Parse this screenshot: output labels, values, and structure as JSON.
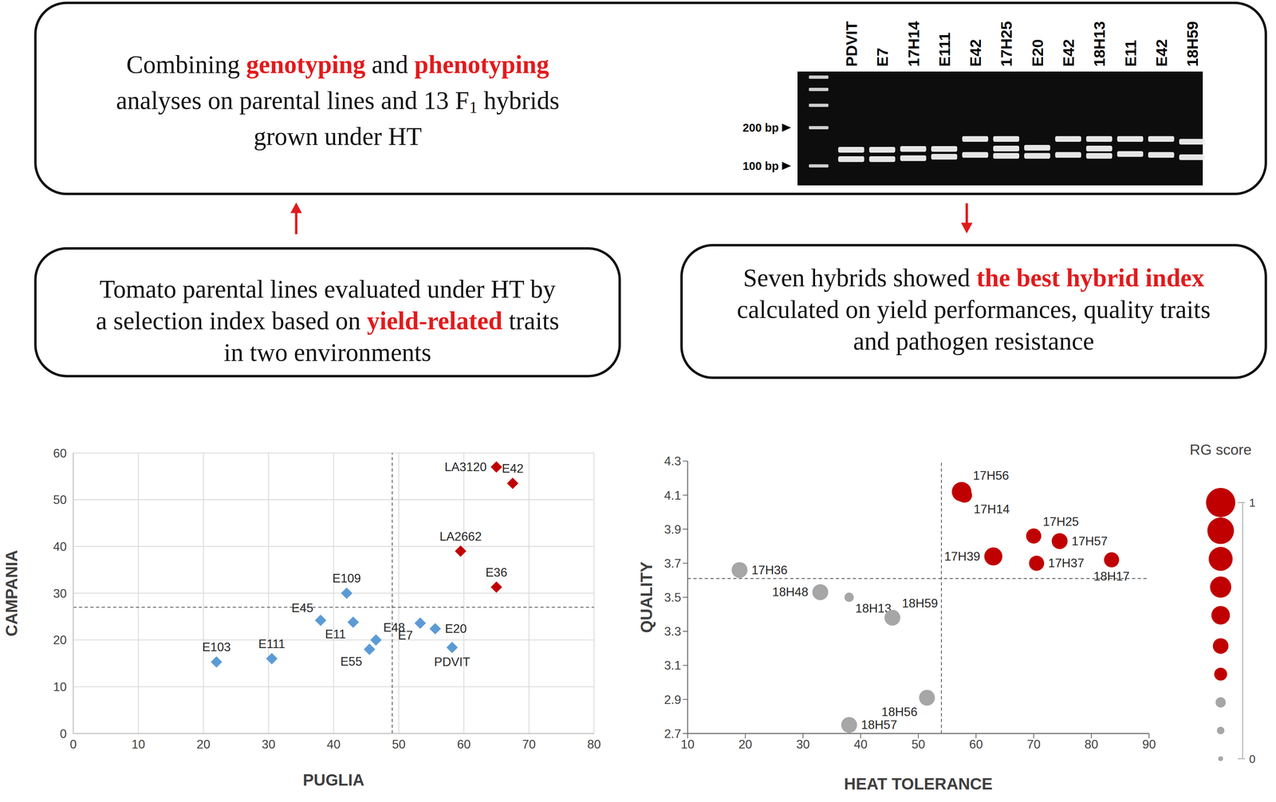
{
  "emphasis_color": "#e31a1c",
  "boxes": {
    "top": {
      "lines": [
        [
          {
            "text": "Combining "
          },
          {
            "text": "genotyping",
            "emphasis": true
          },
          {
            "text": " and "
          },
          {
            "text": "phenotyping",
            "emphasis": true
          }
        ],
        [
          {
            "text": "analyses on parental lines and 13 F"
          },
          {
            "text": "1",
            "sub": true
          },
          {
            "text": " hybrids"
          }
        ],
        [
          {
            "text": "grown under HT"
          }
        ]
      ]
    },
    "left": {
      "lines": [
        [
          {
            "text": "Tomato parental lines evaluated under HT by"
          }
        ],
        [
          {
            "text": "a selection index based on "
          },
          {
            "text": "yield-related",
            "emphasis": true
          },
          {
            "text": " traits"
          }
        ],
        [
          {
            "text": "in two environments"
          }
        ]
      ]
    },
    "right": {
      "lines": [
        [
          {
            "text": "Seven hybrids showed "
          },
          {
            "text": "the best hybrid index",
            "emphasis": true
          }
        ],
        [
          {
            "text": "calculated on yield performances, quality traits"
          }
        ],
        [
          {
            "text": "and pathogen resistance"
          }
        ]
      ]
    }
  },
  "gel": {
    "markers": [
      {
        "value": 200,
        "label": "200 bp"
      },
      {
        "value": 100,
        "label": "100 bp"
      }
    ],
    "ladder_bp": [
      100,
      200,
      300,
      400,
      500
    ],
    "lanes": [
      {
        "label": "PDVIT",
        "bands_bp": [
          134,
          113
        ]
      },
      {
        "label": "E7",
        "bands_bp": [
          134,
          113
        ]
      },
      {
        "label": "17H14",
        "bands_bp": [
          136,
          115
        ]
      },
      {
        "label": "E111",
        "bands_bp": [
          136,
          118
        ]
      },
      {
        "label": "E42",
        "bands_bp": [
          163,
          122
        ]
      },
      {
        "label": "17H25",
        "bands_bp": [
          163,
          137,
          120
        ]
      },
      {
        "label": "E20",
        "bands_bp": [
          139,
          120
        ]
      },
      {
        "label": "E42",
        "bands_bp": [
          163,
          122
        ]
      },
      {
        "label": "18H13",
        "bands_bp": [
          163,
          137,
          120
        ]
      },
      {
        "label": "E11",
        "bands_bp": [
          163,
          124
        ]
      },
      {
        "label": "E42",
        "bands_bp": [
          163,
          122
        ]
      },
      {
        "label": "18H59",
        "bands_bp": [
          155,
          117
        ]
      }
    ]
  },
  "chart_data": [
    {
      "type": "scatter",
      "x_label": "PUGLIA",
      "y_label": "CAMPANIA",
      "xlim": [
        0,
        80
      ],
      "xticks": [
        0,
        10,
        20,
        30,
        40,
        50,
        60,
        70,
        80
      ],
      "ylim": [
        0,
        60
      ],
      "yticks": [
        0,
        10,
        20,
        30,
        40,
        50,
        60
      ],
      "grid": true,
      "marker": "diamond",
      "thresholds": {
        "x": 49,
        "y": 27
      },
      "points": [
        {
          "label": "LA3120",
          "x": 65,
          "y": 57,
          "color": "#c00000"
        },
        {
          "label": "E42",
          "x": 67.5,
          "y": 53.5,
          "color": "#c00000"
        },
        {
          "label": "LA2662",
          "x": 59.5,
          "y": 39,
          "color": "#c00000"
        },
        {
          "label": "E36",
          "x": 65,
          "y": 31.3,
          "color": "#c00000"
        },
        {
          "label": "E109",
          "x": 42,
          "y": 30,
          "color": "#5b9bd5"
        },
        {
          "label": "E45",
          "x": 38,
          "y": 24.2,
          "color": "#5b9bd5"
        },
        {
          "label": "E11",
          "x": 43,
          "y": 23.8,
          "color": "#5b9bd5"
        },
        {
          "label": "E48",
          "x": 46.5,
          "y": 20,
          "color": "#5b9bd5"
        },
        {
          "label": "E55",
          "x": 45.5,
          "y": 18,
          "color": "#5b9bd5"
        },
        {
          "label": "E103",
          "x": 22,
          "y": 15.3,
          "color": "#5b9bd5"
        },
        {
          "label": "E111",
          "x": 30.5,
          "y": 16,
          "color": "#5b9bd5"
        },
        {
          "label": "E7",
          "x": 53.3,
          "y": 23.6,
          "color": "#5b9bd5"
        },
        {
          "label": "E20",
          "x": 55.6,
          "y": 22.4,
          "color": "#5b9bd5"
        },
        {
          "label": "PDVIT",
          "x": 58.2,
          "y": 18.4,
          "color": "#5b9bd5"
        }
      ]
    },
    {
      "type": "scatter",
      "x_label": "HEAT TOLERANCE",
      "y_label": "QUALITY",
      "xlim": [
        10,
        90
      ],
      "xticks": [
        10,
        20,
        30,
        40,
        50,
        60,
        70,
        80,
        90
      ],
      "ylim": [
        2.7,
        4.3
      ],
      "yticks": [
        2.7,
        2.9,
        3.1,
        3.3,
        3.5,
        3.7,
        3.9,
        4.1,
        4.3
      ],
      "grid": false,
      "marker": "circle",
      "thresholds": {
        "x": 54,
        "y": 3.61
      },
      "points": [
        {
          "label": "17H56",
          "x": 57.5,
          "y": 4.12,
          "rg_score": 1,
          "color": "#c00000"
        },
        {
          "label": "17H14",
          "x": 58,
          "y": 4.1,
          "rg_score": 0.7,
          "color": "#c00000"
        },
        {
          "label": "17H25",
          "x": 70,
          "y": 3.86,
          "rg_score": 0.7,
          "color": "#c00000"
        },
        {
          "label": "17H57",
          "x": 74.5,
          "y": 3.83,
          "rg_score": 0.75,
          "color": "#c00000"
        },
        {
          "label": "17H39",
          "x": 63,
          "y": 3.74,
          "rg_score": 0.9,
          "color": "#c00000"
        },
        {
          "label": "17H37",
          "x": 70.5,
          "y": 3.7,
          "rg_score": 0.7,
          "color": "#c00000"
        },
        {
          "label": "18H17",
          "x": 83.5,
          "y": 3.72,
          "rg_score": 0.7,
          "color": "#c00000"
        },
        {
          "label": "17H36",
          "x": 19,
          "y": 3.66,
          "rg_score": 0.75,
          "color": "#a6a6a6"
        },
        {
          "label": "18H48",
          "x": 33,
          "y": 3.53,
          "rg_score": 0.75,
          "color": "#a6a6a6"
        },
        {
          "label": "18H13",
          "x": 38,
          "y": 3.5,
          "rg_score": 0.3,
          "color": "#a6a6a6"
        },
        {
          "label": "18H59",
          "x": 45.5,
          "y": 3.38,
          "rg_score": 0.75,
          "color": "#a6a6a6"
        },
        {
          "label": "18H56",
          "x": 51.5,
          "y": 2.91,
          "rg_score": 0.75,
          "color": "#a6a6a6"
        },
        {
          "label": "18H57",
          "x": 38,
          "y": 2.75,
          "rg_score": 0.75,
          "color": "#a6a6a6"
        }
      ],
      "size_legend": {
        "title": "RG score",
        "values": [
          1,
          0.89,
          0.78,
          0.67,
          0.56,
          0.44,
          0.33,
          0.22,
          0.11,
          0
        ],
        "colors": [
          "#c00000",
          "#c00000",
          "#c00000",
          "#c00000",
          "#c00000",
          "#c00000",
          "#c00000",
          "#a6a6a6",
          "#a6a6a6",
          "#a6a6a6"
        ],
        "ticks": [
          0,
          1
        ]
      }
    }
  ]
}
